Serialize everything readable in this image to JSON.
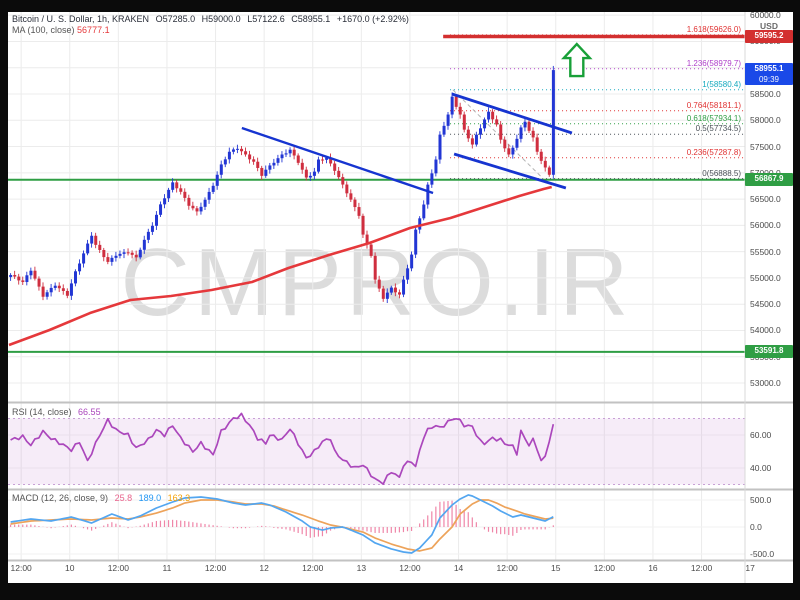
{
  "header": {
    "symbol": "Bitcoin / U. S. Dollar, 1h, KRAKEN",
    "o": "O57285.0",
    "h": "H59000.0",
    "l": "L57122.6",
    "c": "C58955.1",
    "change": "+1670.0 (+2.92%)",
    "ma_label": "MA (100, close)",
    "ma_value": "56777.1"
  },
  "watermark": "CMPRO.IR",
  "rsi_header": {
    "label": "RSI (14, close)",
    "value": "66.55"
  },
  "macd_header": {
    "label": "MACD (12, 26, close, 9)",
    "hist": "25.8",
    "macd": "189.0",
    "signal": "163.3"
  },
  "price_axis": {
    "currency": "USD",
    "ticks": [
      60000,
      59500,
      59000,
      58500,
      58000,
      57500,
      57000,
      56500,
      56000,
      55500,
      55000,
      54500,
      54000,
      53500,
      53000
    ]
  },
  "time_axis": {
    "ticks": [
      {
        "t": 3,
        "label": "12:00"
      },
      {
        "t": 15,
        "label": "10"
      },
      {
        "t": 27,
        "label": "12:00"
      },
      {
        "t": 39,
        "label": "11"
      },
      {
        "t": 51,
        "label": "12:00"
      },
      {
        "t": 63,
        "label": "12"
      },
      {
        "t": 75,
        "label": "12:00"
      },
      {
        "t": 87,
        "label": "13"
      },
      {
        "t": 99,
        "label": "12:00"
      },
      {
        "t": 111,
        "label": "14"
      },
      {
        "t": 123,
        "label": "12:00"
      },
      {
        "t": 135,
        "label": "15"
      },
      {
        "t": 147,
        "label": "12:00"
      },
      {
        "t": 159,
        "label": "16"
      },
      {
        "t": 171,
        "label": "12:00"
      },
      {
        "t": 183,
        "label": "17"
      }
    ]
  },
  "badges": [
    {
      "price": 59595.2,
      "label": "59595.2",
      "sub": "",
      "color": "#d32f2f"
    },
    {
      "price": 58955.1,
      "label": "58955.1",
      "sub": "09:39",
      "color": "#1a49e8"
    },
    {
      "price": 56867.9,
      "label": "56867.9",
      "sub": "",
      "color": "#2f9e44"
    },
    {
      "price": 53591.8,
      "label": "53591.8",
      "sub": "",
      "color": "#2f9e44"
    }
  ],
  "chart_data": {
    "type": "candlestick",
    "title": "Bitcoin / U.S. Dollar, 1h, KRAKEN",
    "last_bar": {
      "open": 57285.0,
      "high": 59000.0,
      "low": 57122.6,
      "close": 58955.1,
      "change": 1670.0,
      "change_pct": 2.92
    },
    "bars": 135,
    "price_ylim": [
      52800,
      60200
    ],
    "up_color": "#2236d4",
    "down_color": "#cf2e3f",
    "ma_color": "#e5383b",
    "close_path": [
      [
        0,
        55056
      ],
      [
        3,
        54922
      ],
      [
        5,
        55151
      ],
      [
        8,
        54656
      ],
      [
        11,
        54866
      ],
      [
        14,
        54675
      ],
      [
        16,
        55113
      ],
      [
        20,
        55817
      ],
      [
        21,
        55627
      ],
      [
        24,
        55303
      ],
      [
        26,
        55436
      ],
      [
        29,
        55494
      ],
      [
        31,
        55379
      ],
      [
        33,
        55722
      ],
      [
        35,
        56007
      ],
      [
        37,
        56388
      ],
      [
        39,
        56673
      ],
      [
        40,
        56807
      ],
      [
        42,
        56635
      ],
      [
        44,
        56388
      ],
      [
        46,
        56254
      ],
      [
        48,
        56483
      ],
      [
        50,
        56768
      ],
      [
        52,
        57149
      ],
      [
        54,
        57396
      ],
      [
        56,
        57472
      ],
      [
        58,
        57339
      ],
      [
        60,
        57206
      ],
      [
        62,
        56958
      ],
      [
        63,
        57054
      ],
      [
        65,
        57206
      ],
      [
        67,
        57339
      ],
      [
        69,
        57434
      ],
      [
        71,
        57206
      ],
      [
        73,
        56901
      ],
      [
        75,
        57016
      ],
      [
        76,
        57244
      ],
      [
        78,
        57282
      ],
      [
        80,
        57054
      ],
      [
        82,
        56768
      ],
      [
        84,
        56483
      ],
      [
        86,
        56197
      ],
      [
        87,
        55817
      ],
      [
        89,
        55436
      ],
      [
        90,
        54960
      ],
      [
        92,
        54618
      ],
      [
        94,
        54808
      ],
      [
        96,
        54675
      ],
      [
        97,
        54960
      ],
      [
        99,
        55436
      ],
      [
        100,
        55912
      ],
      [
        102,
        56388
      ],
      [
        103,
        56768
      ],
      [
        105,
        57244
      ],
      [
        106,
        57720
      ],
      [
        108,
        58100
      ],
      [
        109,
        58443
      ],
      [
        111,
        58100
      ],
      [
        112,
        57815
      ],
      [
        114,
        57529
      ],
      [
        115,
        57720
      ],
      [
        117,
        58005
      ],
      [
        118,
        58157
      ],
      [
        120,
        57910
      ],
      [
        121,
        57625
      ],
      [
        123,
        57339
      ],
      [
        124,
        57472
      ],
      [
        126,
        57853
      ],
      [
        127,
        57967
      ],
      [
        129,
        57663
      ],
      [
        130,
        57396
      ],
      [
        132,
        57091
      ],
      [
        133,
        56958
      ],
      [
        134,
        58955.1
      ]
    ],
    "ma100_path": [
      [
        0,
        53723
      ],
      [
        10,
        54009
      ],
      [
        20,
        54332
      ],
      [
        30,
        54580
      ],
      [
        40,
        54656
      ],
      [
        50,
        54770
      ],
      [
        60,
        54922
      ],
      [
        69,
        55189
      ],
      [
        79,
        55436
      ],
      [
        89,
        55664
      ],
      [
        99,
        55950
      ],
      [
        109,
        56140
      ],
      [
        119,
        56388
      ],
      [
        126,
        56559
      ],
      [
        132,
        56692
      ],
      [
        134,
        56730
      ]
    ],
    "horizontal_lines": [
      {
        "price": 59595.2,
        "color": "#d32f2f",
        "width": 3.5,
        "from_t": 107.2,
        "full": false
      },
      {
        "price": 56867.9,
        "color": "#2f9e44",
        "width": 2,
        "from_t": 0,
        "full": true
      },
      {
        "price": 53591.8,
        "color": "#2f9e44",
        "width": 2,
        "from_t": 0,
        "full": true
      }
    ],
    "trendlines": [
      {
        "name": "descending-resistance",
        "points": [
          [
            57.5,
            57853
          ],
          [
            104.7,
            56616
          ]
        ],
        "color": "#1634d0",
        "width": 2.4
      },
      {
        "name": "flag-top",
        "points": [
          [
            109.4,
            58500
          ],
          [
            139,
            57758
          ]
        ],
        "color": "#1634d0",
        "width": 2.8
      },
      {
        "name": "flag-bottom",
        "points": [
          [
            109.9,
            57358
          ],
          [
            137.5,
            56711
          ]
        ],
        "color": "#1634d0",
        "width": 2.8
      }
    ],
    "fib": {
      "from_t": 108.9,
      "diagonal": [
        [
          109.6,
          58580.4
        ],
        [
          131.9,
          56888.5
        ]
      ],
      "levels": [
        {
          "ratio": "1.618",
          "price": 59626.0,
          "color": "#e03131"
        },
        {
          "ratio": "1.236",
          "price": 58979.7,
          "color": "#ae3ec9"
        },
        {
          "ratio": "1",
          "price": 58580.4,
          "color": "#15aabf"
        },
        {
          "ratio": "0.764",
          "price": 58181.1,
          "color": "#e03131"
        },
        {
          "ratio": "0.618",
          "price": 57934.1,
          "color": "#2f9e44"
        },
        {
          "ratio": "0.5",
          "price": 57734.5,
          "color": "#495057"
        },
        {
          "ratio": "0.236",
          "price": 57287.8,
          "color": "#e03131"
        },
        {
          "ratio": "0",
          "price": 56888.5,
          "color": "#495057"
        }
      ]
    },
    "annotations": [
      {
        "type": "up-arrow",
        "t": 140.2,
        "price_top": 59451,
        "price_bottom": 58842,
        "color": "#18a038"
      }
    ],
    "rsi": {
      "length": 14,
      "source": "close",
      "last": 66.55,
      "overbought": 70,
      "oversold": 30,
      "ticks": [
        60,
        40
      ],
      "color": "#ab47bc",
      "path": [
        [
          0,
          57
        ],
        [
          3,
          59
        ],
        [
          5,
          54
        ],
        [
          8,
          62
        ],
        [
          10,
          58
        ],
        [
          13,
          54
        ],
        [
          15,
          51
        ],
        [
          17,
          56
        ],
        [
          19,
          44
        ],
        [
          22,
          60
        ],
        [
          24,
          69
        ],
        [
          26,
          63
        ],
        [
          29,
          60
        ],
        [
          31,
          52
        ],
        [
          34,
          57
        ],
        [
          36,
          63
        ],
        [
          38,
          60
        ],
        [
          40,
          66
        ],
        [
          42,
          58
        ],
        [
          45,
          50
        ],
        [
          47,
          55
        ],
        [
          50,
          48
        ],
        [
          52,
          62
        ],
        [
          55,
          70
        ],
        [
          57,
          72
        ],
        [
          59,
          66
        ],
        [
          61,
          58
        ],
        [
          63,
          55
        ],
        [
          64,
          60
        ],
        [
          67,
          57
        ],
        [
          69,
          64
        ],
        [
          71,
          55
        ],
        [
          73,
          46
        ],
        [
          75,
          50
        ],
        [
          77,
          56
        ],
        [
          79,
          58
        ],
        [
          80,
          50
        ],
        [
          82,
          45
        ],
        [
          85,
          40
        ],
        [
          87,
          42
        ],
        [
          89,
          36
        ],
        [
          90,
          33
        ],
        [
          92,
          31
        ],
        [
          94,
          38
        ],
        [
          96,
          34
        ],
        [
          97,
          42
        ],
        [
          99,
          44
        ],
        [
          100,
          41
        ],
        [
          102,
          59
        ],
        [
          103,
          63
        ],
        [
          105,
          66
        ],
        [
          106,
          64
        ],
        [
          108,
          68
        ],
        [
          110,
          70.5
        ],
        [
          112,
          66
        ],
        [
          114,
          65
        ],
        [
          116,
          56
        ],
        [
          117,
          55
        ],
        [
          119,
          58
        ],
        [
          121,
          57
        ],
        [
          122,
          55
        ],
        [
          124,
          53
        ],
        [
          125,
          49
        ],
        [
          126,
          62
        ],
        [
          128,
          54
        ],
        [
          129,
          57
        ],
        [
          130,
          52
        ],
        [
          131,
          44
        ],
        [
          132,
          47
        ],
        [
          134,
          66.55
        ]
      ]
    },
    "macd": {
      "fast": 12,
      "slow": 26,
      "signal_len": 9,
      "last_hist": 25.8,
      "last_macd": 189.0,
      "last_signal": 163.3,
      "ticks": [
        500,
        0,
        -500
      ],
      "macd_color": "#53a6f0",
      "signal_color": "#eda35a",
      "hist_color": "#ef86a8",
      "macd_path": [
        [
          0,
          93
        ],
        [
          5,
          148
        ],
        [
          10,
          111
        ],
        [
          15,
          185
        ],
        [
          20,
          74
        ],
        [
          25,
          241
        ],
        [
          29,
          130
        ],
        [
          32,
          204
        ],
        [
          36,
          352
        ],
        [
          40,
          463
        ],
        [
          43,
          537
        ],
        [
          47,
          556
        ],
        [
          51,
          519
        ],
        [
          55,
          444
        ],
        [
          58,
          407
        ],
        [
          62,
          444
        ],
        [
          64,
          407
        ],
        [
          68,
          278
        ],
        [
          72,
          111
        ],
        [
          74,
          0
        ],
        [
          77,
          -56
        ],
        [
          79,
          -19
        ],
        [
          82,
          0
        ],
        [
          84,
          -56
        ],
        [
          87,
          -148
        ],
        [
          90,
          -296
        ],
        [
          94,
          -407
        ],
        [
          97,
          -463
        ],
        [
          99,
          -481
        ],
        [
          101,
          -389
        ],
        [
          104,
          -148
        ],
        [
          106,
          167
        ],
        [
          109,
          407
        ],
        [
          111,
          519
        ],
        [
          113,
          593
        ],
        [
          114,
          574
        ],
        [
          116,
          500
        ],
        [
          119,
          389
        ],
        [
          121,
          296
        ],
        [
          124,
          185
        ],
        [
          126,
          222
        ],
        [
          128,
          185
        ],
        [
          130,
          148
        ],
        [
          132,
          111
        ],
        [
          134,
          189
        ]
      ],
      "signal_path": [
        [
          0,
          56
        ],
        [
          5,
          111
        ],
        [
          10,
          130
        ],
        [
          15,
          148
        ],
        [
          20,
          130
        ],
        [
          25,
          167
        ],
        [
          29,
          148
        ],
        [
          32,
          185
        ],
        [
          36,
          259
        ],
        [
          40,
          352
        ],
        [
          43,
          444
        ],
        [
          47,
          500
        ],
        [
          51,
          500
        ],
        [
          55,
          463
        ],
        [
          58,
          426
        ],
        [
          62,
          426
        ],
        [
          65,
          389
        ],
        [
          68,
          315
        ],
        [
          72,
          222
        ],
        [
          76,
          111
        ],
        [
          79,
          37
        ],
        [
          83,
          -19
        ],
        [
          87,
          -93
        ],
        [
          90,
          -204
        ],
        [
          94,
          -315
        ],
        [
          98,
          -407
        ],
        [
          101,
          -444
        ],
        [
          104,
          -389
        ],
        [
          106,
          -222
        ],
        [
          109,
          0
        ],
        [
          111,
          241
        ],
        [
          114,
          426
        ],
        [
          116,
          500
        ],
        [
          118,
          500
        ],
        [
          120,
          444
        ],
        [
          122,
          370
        ],
        [
          125,
          296
        ],
        [
          127,
          241
        ],
        [
          130,
          185
        ],
        [
          132,
          148
        ],
        [
          134,
          163.3
        ]
      ]
    }
  }
}
